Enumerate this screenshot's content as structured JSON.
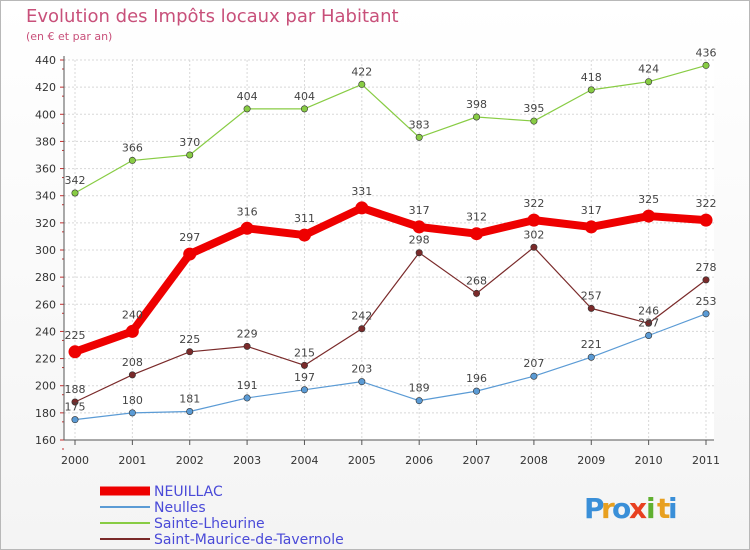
{
  "chart_data": {
    "type": "line",
    "title": "Evolution des Impôts locaux par Habitant",
    "subtitle": "(en € et par an)",
    "x": [
      "2000",
      "2001",
      "2002",
      "2003",
      "2004",
      "2005",
      "2006",
      "2007",
      "2008",
      "2009",
      "2010",
      "2011"
    ],
    "ylim": [
      160,
      440
    ],
    "yticks": [
      160,
      180,
      200,
      220,
      240,
      260,
      280,
      300,
      320,
      340,
      360,
      380,
      400,
      420,
      440
    ],
    "grid": true,
    "legend_position": "bottom-left",
    "series": [
      {
        "name": "NEUILLAC",
        "color": "#ee0000",
        "values": [
          225,
          240,
          297,
          316,
          311,
          331,
          317,
          312,
          322,
          317,
          325,
          322
        ]
      },
      {
        "name": "Neulles",
        "color": "#5b9bd5",
        "values": [
          175,
          180,
          181,
          191,
          197,
          203,
          189,
          196,
          207,
          221,
          237,
          253
        ]
      },
      {
        "name": "Sainte-Lheurine",
        "color": "#88cc44",
        "values": [
          342,
          366,
          370,
          404,
          404,
          422,
          383,
          398,
          395,
          418,
          424,
          436
        ]
      },
      {
        "name": "Saint-Maurice-de-Tavernole",
        "color": "#7a2a2a",
        "values": [
          188,
          208,
          225,
          229,
          215,
          242,
          298,
          268,
          302,
          257,
          246,
          278
        ]
      }
    ],
    "data_labels": [
      [
        "225",
        "240",
        "297",
        "316",
        "311",
        "331",
        "317",
        "312",
        "322",
        "317",
        "325",
        "322"
      ],
      [
        "175",
        "180",
        "181",
        "191",
        "197",
        "203",
        "189",
        "196",
        "207",
        "221",
        "237",
        "253"
      ],
      [
        "342",
        "366",
        "370",
        "404",
        "404",
        "422",
        "383",
        "398",
        "395",
        "418",
        "424",
        "436"
      ],
      [
        "188",
        "208",
        "225",
        "229",
        "215",
        "242",
        "298",
        "268",
        "302",
        "257",
        "246",
        "278"
      ]
    ]
  },
  "brand": {
    "letters": [
      "P",
      "r",
      "o",
      "x",
      "i",
      "t",
      "i"
    ],
    "colors": [
      "#3a8fd8",
      "#e8a020",
      "#3a8fd8",
      "#e84020",
      "#60b030",
      "#e8a020",
      "#3a8fd8"
    ]
  }
}
